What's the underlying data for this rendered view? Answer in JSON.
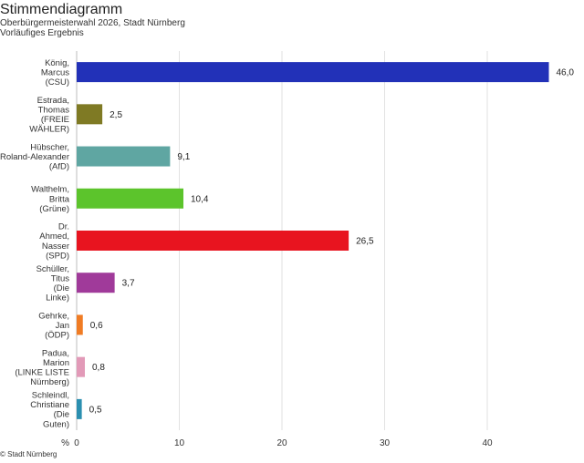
{
  "header": {
    "title": "Stimmendiagramm",
    "subtitle": "Oberbürgermeisterwahl 2026, Stadt Nürnberg",
    "status": "Vorläufiges Ergebnis"
  },
  "footer": {
    "copyright": "© Stadt Nürnberg"
  },
  "chart_data": {
    "type": "bar",
    "orientation": "horizontal",
    "categories": [
      "König, Marcus (CSU)",
      "Estrada, Thomas (FREIE WÄHLER)",
      "Hübscher, Roland-Alexander (AfD)",
      "Walthelm, Britta (Grüne)",
      "Dr. Ahmed, Nasser (SPD)",
      "Schüller, Titus (Die Linke)",
      "Gehrke, Jan (ÖDP)",
      "Padua, Marion (LINKE LISTE Nürnberg)",
      "Schleindl, Christiane (Die Guten)"
    ],
    "category_label_lines": [
      [
        "König,",
        "Marcus",
        "(CSU)"
      ],
      [
        "Estrada,",
        "Thomas",
        "(FREIE",
        "WÄHLER)"
      ],
      [
        "Hübscher,",
        "Roland-Alexander",
        "(AfD)"
      ],
      [
        "Walthelm,",
        "Britta",
        "(Grüne)"
      ],
      [
        "Dr.",
        "Ahmed,",
        "Nasser",
        "(SPD)"
      ],
      [
        "Schüller,",
        "Titus",
        "(Die",
        "Linke)"
      ],
      [
        "Gehrke,",
        "Jan",
        "(ÖDP)"
      ],
      [
        "Padua,",
        "Marion",
        "(LINKE LISTE",
        "Nürnberg)"
      ],
      [
        "Schleindl,",
        "Christiane",
        "(Die",
        "Guten)"
      ]
    ],
    "values": [
      46.0,
      2.5,
      9.1,
      10.4,
      26.5,
      3.7,
      0.6,
      0.8,
      0.5
    ],
    "value_labels": [
      "46,0",
      "2,5",
      "9,1",
      "10,4",
      "26,5",
      "3,7",
      "0,6",
      "0,8",
      "0,5"
    ],
    "colors": [
      "#2231b8",
      "#7f7a24",
      "#5fa6a2",
      "#5cc42c",
      "#e8141f",
      "#a03a9a",
      "#f07c24",
      "#e29ab8",
      "#2b8fb0"
    ],
    "xlabel": "%",
    "xlim": [
      0,
      48
    ],
    "xticks": [
      0,
      10,
      20,
      30,
      40
    ],
    "grid": true
  }
}
